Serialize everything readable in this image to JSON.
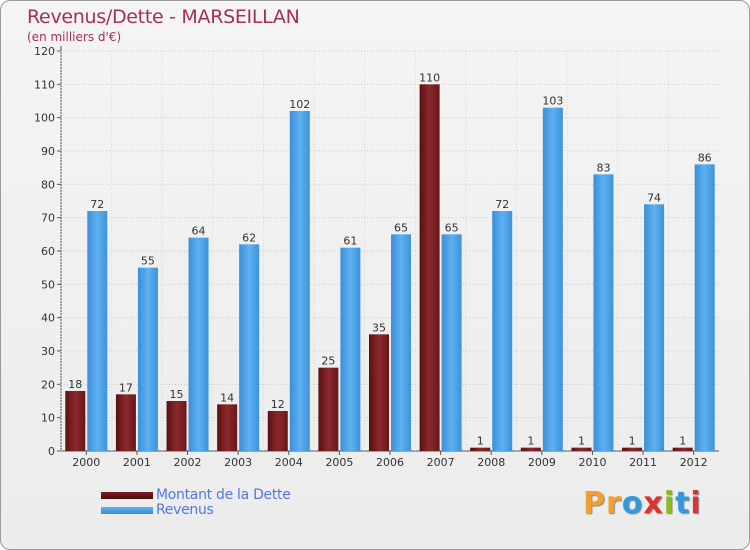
{
  "title": "Revenus/Dette - MARSEILLAN",
  "subtitle": "(en milliers d'€)",
  "legend": [
    {
      "label": "Montant de la Dette",
      "color": "#7a1f22"
    },
    {
      "label": "Revenus",
      "color": "#4aa0e6"
    }
  ],
  "logo": {
    "letters": [
      "P",
      "r",
      "o",
      "x",
      "i",
      "t",
      "i"
    ],
    "colors": [
      "#f0a030",
      "#f0a030",
      "#3399dd",
      "#dd3333",
      "#88bb22",
      "#3399dd",
      "#dd3333"
    ]
  },
  "chart_data": {
    "type": "bar",
    "categories": [
      "2000",
      "2001",
      "2002",
      "2003",
      "2004",
      "2005",
      "2006",
      "2007",
      "2008",
      "2009",
      "2010",
      "2011",
      "2012"
    ],
    "series": [
      {
        "name": "Montant de la Dette",
        "values": [
          18,
          17,
          15,
          14,
          12,
          25,
          35,
          110,
          1,
          1,
          1,
          1,
          1
        ],
        "color": "#7a1f22"
      },
      {
        "name": "Revenus",
        "values": [
          72,
          55,
          64,
          62,
          102,
          61,
          65,
          65,
          72,
          103,
          83,
          74,
          86
        ],
        "color": "#4aa0e6"
      }
    ],
    "title": "Revenus/Dette - MARSEILLAN",
    "ylabel": "(en milliers d'€)",
    "xlabel": "",
    "ylim": [
      0,
      120
    ],
    "yticks": [
      0,
      10,
      20,
      30,
      40,
      50,
      60,
      70,
      80,
      90,
      100,
      110,
      120
    ],
    "grid": true
  }
}
